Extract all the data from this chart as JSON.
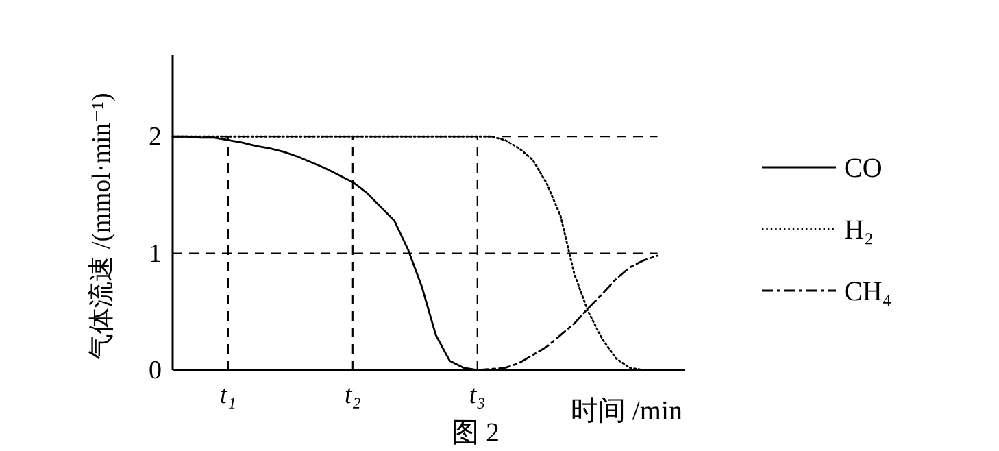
{
  "chart_data": {
    "type": "line",
    "xlabel": "时间 /min",
    "ylabel": "气体流速 /(mmol·min⁻¹)",
    "annotations": [
      "图 2"
    ],
    "categories": [
      null,
      null,
      null,
      null,
      "t₁",
      null,
      null,
      null,
      null,
      null,
      null,
      null,
      null,
      "t₂",
      null,
      null,
      null,
      null,
      null,
      null,
      null,
      null,
      "t₃",
      null,
      null,
      null,
      null,
      null,
      null,
      null,
      null,
      null,
      null,
      null,
      null,
      null,
      null,
      null
    ],
    "ylim": [
      0,
      2.7
    ],
    "yticks": [
      0,
      1,
      2
    ],
    "legend": "right",
    "ref_lines": [
      {
        "axis": "y",
        "value": 2,
        "line_style": "dashed",
        "color": "#000000"
      },
      {
        "axis": "y",
        "value": 1,
        "line_style": "dashed",
        "color": "#000000"
      },
      {
        "axis": "x",
        "value": "t₁",
        "line_style": "dashed",
        "color": "#000000"
      },
      {
        "axis": "x",
        "value": "t₂",
        "line_style": "dashed",
        "color": "#000000"
      },
      {
        "axis": "x",
        "value": "t₃",
        "line_style": "dashed",
        "color": "#000000"
      }
    ],
    "series": [
      {
        "name": "CO",
        "color": "#000000",
        "line_style": "solid",
        "values": [
          2.0,
          2.0,
          1.99,
          1.99,
          1.97,
          1.95,
          1.92,
          1.9,
          1.87,
          1.83,
          1.78,
          1.73,
          1.67,
          1.61,
          1.52,
          1.4,
          1.28,
          1.03,
          0.71,
          0.3,
          0.08,
          0.02,
          0,
          null,
          null,
          null,
          null,
          null,
          null,
          null,
          null,
          null,
          null,
          null,
          null,
          null,
          null,
          null
        ]
      },
      {
        "name": "H₂",
        "color": "#000000",
        "line_style": "dotted",
        "values": [
          2,
          2,
          2,
          2,
          2,
          2,
          2,
          2,
          2,
          2,
          2,
          2,
          2,
          2,
          2,
          2,
          2,
          2,
          2,
          2,
          2,
          2,
          2,
          2,
          1.97,
          1.9,
          1.8,
          1.6,
          1.32,
          0.82,
          0.5,
          0.27,
          0.1,
          0.02,
          0,
          null,
          null,
          null
        ]
      },
      {
        "name": "CH₄",
        "color": "#000000",
        "line_style": "dashdot",
        "values": [
          null,
          null,
          null,
          null,
          null,
          null,
          null,
          null,
          null,
          null,
          null,
          null,
          null,
          null,
          null,
          null,
          null,
          null,
          null,
          null,
          null,
          null,
          0,
          0.01,
          0.02,
          0.06,
          0.13,
          0.2,
          0.3,
          0.4,
          0.53,
          0.65,
          0.78,
          0.88,
          0.94,
          0.98,
          null,
          null
        ]
      }
    ]
  }
}
